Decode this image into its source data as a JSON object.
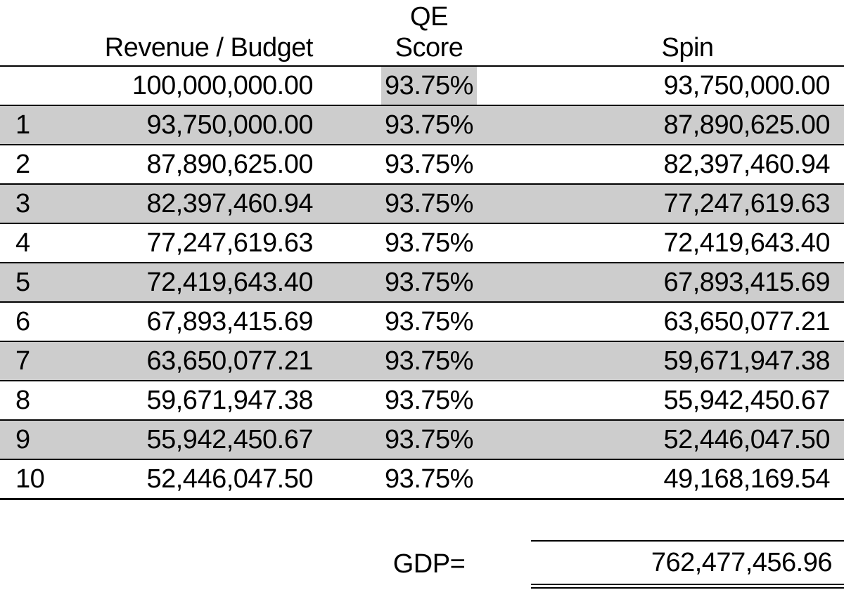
{
  "table": {
    "headers": {
      "row_num": "",
      "revenue": "Revenue / Budget",
      "qe_line1": "QE",
      "qe_line2": "Score",
      "spin": "Spin"
    },
    "rows": [
      {
        "num": "",
        "revenue": "100,000,000.00",
        "qe": "93.75%",
        "spin": "93,750,000.00",
        "qe_highlighted": true
      },
      {
        "num": "1",
        "revenue": "93,750,000.00",
        "qe": "93.75%",
        "spin": "87,890,625.00",
        "qe_highlighted": false
      },
      {
        "num": "2",
        "revenue": "87,890,625.00",
        "qe": "93.75%",
        "spin": "82,397,460.94",
        "qe_highlighted": false
      },
      {
        "num": "3",
        "revenue": "82,397,460.94",
        "qe": "93.75%",
        "spin": "77,247,619.63",
        "qe_highlighted": false
      },
      {
        "num": "4",
        "revenue": "77,247,619.63",
        "qe": "93.75%",
        "spin": "72,419,643.40",
        "qe_highlighted": false
      },
      {
        "num": "5",
        "revenue": "72,419,643.40",
        "qe": "93.75%",
        "spin": "67,893,415.69",
        "qe_highlighted": false
      },
      {
        "num": "6",
        "revenue": "67,893,415.69",
        "qe": "93.75%",
        "spin": "63,650,077.21",
        "qe_highlighted": false
      },
      {
        "num": "7",
        "revenue": "63,650,077.21",
        "qe": "93.75%",
        "spin": "59,671,947.38",
        "qe_highlighted": false
      },
      {
        "num": "8",
        "revenue": "59,671,947.38",
        "qe": "93.75%",
        "spin": "55,942,450.67",
        "qe_highlighted": false
      },
      {
        "num": "9",
        "revenue": "55,942,450.67",
        "qe": "93.75%",
        "spin": "52,446,047.50",
        "qe_highlighted": false
      },
      {
        "num": "10",
        "revenue": "52,446,047.50",
        "qe": "93.75%",
        "spin": "49,168,169.54",
        "qe_highlighted": false
      }
    ],
    "footer": {
      "label": "GDP=",
      "value": "762,477,456.96"
    }
  },
  "colors": {
    "stripe": "#cdcdcd",
    "cell_highlight": "#cdcdcd",
    "border": "#000000",
    "text": "#000000",
    "background": "#ffffff"
  }
}
